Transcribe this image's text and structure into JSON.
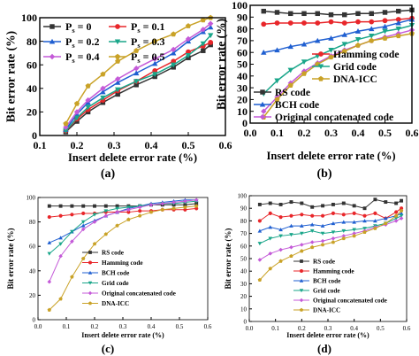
{
  "chart_data": [
    {
      "type": "line",
      "panel_label": "(a)",
      "xlabel": "Insert delete error rate (%)",
      "ylabel": "Bit error rate (%)",
      "xlim": [
        0.1,
        0.6
      ],
      "ylim": [
        0,
        100
      ],
      "xticks": [
        "0.1",
        "0.2",
        "0.3",
        "0.4",
        "0.5",
        "0.6"
      ],
      "yticks": [
        "0",
        "20",
        "40",
        "60",
        "80",
        "100"
      ],
      "grid": false,
      "legend_position": "top-left",
      "legend_columns": 2,
      "series": [
        {
          "name": "Ps = 0",
          "legend_main": "P",
          "legend_sub": "s",
          "legend_rest": " = 0",
          "color": "#333333",
          "marker": "square",
          "x": [
            0.17,
            0.2,
            0.23,
            0.27,
            0.31,
            0.36,
            0.41,
            0.46,
            0.5,
            0.54,
            0.56
          ],
          "y": [
            3,
            12,
            20,
            28,
            35,
            43,
            50,
            58,
            66,
            72,
            77
          ]
        },
        {
          "name": "Ps = 0.1",
          "legend_main": "P",
          "legend_sub": "s",
          "legend_rest": " = 0.1",
          "color": "#e8262a",
          "marker": "circle",
          "x": [
            0.17,
            0.2,
            0.23,
            0.27,
            0.31,
            0.36,
            0.41,
            0.46,
            0.5,
            0.54,
            0.56
          ],
          "y": [
            4,
            14,
            22,
            30,
            38,
            46,
            55,
            63,
            71,
            76,
            79
          ]
        },
        {
          "name": "Ps = 0.2",
          "legend_main": "P",
          "legend_sub": "s",
          "legend_rest": " = 0.2",
          "color": "#1f5fd1",
          "marker": "triangle",
          "x": [
            0.17,
            0.2,
            0.23,
            0.27,
            0.31,
            0.36,
            0.41,
            0.46,
            0.5,
            0.54,
            0.56
          ],
          "y": [
            5,
            18,
            28,
            37,
            45,
            53,
            61,
            70,
            80,
            88,
            92
          ]
        },
        {
          "name": "Ps = 0.3",
          "legend_main": "P",
          "legend_sub": "s",
          "legend_rest": " = 0.3",
          "color": "#1aa68a",
          "marker": "triangle-down",
          "x": [
            0.17,
            0.2,
            0.23,
            0.27,
            0.31,
            0.36,
            0.41,
            0.46,
            0.5,
            0.54,
            0.56
          ],
          "y": [
            4,
            15,
            24,
            32,
            39,
            46,
            52,
            60,
            68,
            78,
            85
          ]
        },
        {
          "name": "Ps = 0.4",
          "legend_main": "P",
          "legend_sub": "s",
          "legend_rest": " = 0.4",
          "color": "#c45ad8",
          "marker": "diamond",
          "x": [
            0.17,
            0.2,
            0.23,
            0.27,
            0.31,
            0.36,
            0.41,
            0.46,
            0.5,
            0.54,
            0.56
          ],
          "y": [
            7,
            20,
            30,
            40,
            48,
            57,
            65,
            73,
            82,
            90,
            95
          ]
        },
        {
          "name": "Ps = 0.5",
          "legend_main": "P",
          "legend_sub": "s",
          "legend_rest": " = 0.5",
          "color": "#c9a227",
          "marker": "pentagon",
          "x": [
            0.17,
            0.2,
            0.23,
            0.27,
            0.31,
            0.36,
            0.41,
            0.46,
            0.5,
            0.54,
            0.56
          ],
          "y": [
            10,
            27,
            42,
            52,
            63,
            72,
            80,
            86,
            93,
            98,
            100
          ]
        }
      ]
    },
    {
      "type": "line",
      "panel_label": "(b)",
      "xlabel": "Insert delete error rate (%)",
      "ylabel": "Bit error rate (%)",
      "xlim": [
        0.0,
        0.6
      ],
      "ylim": [
        0,
        100
      ],
      "xticks": [
        "0.0",
        "0.1",
        "0.2",
        "0.3",
        "0.4",
        "0.5",
        "0.6"
      ],
      "yticks": [
        "0",
        "10",
        "20",
        "30",
        "40",
        "50",
        "60",
        "70",
        "80",
        "90",
        "100"
      ],
      "grid": false,
      "legend_position": "lower-center",
      "series": [
        {
          "name": "RS code",
          "color": "#333333",
          "marker": "square",
          "x": [
            0.05,
            0.1,
            0.15,
            0.2,
            0.25,
            0.3,
            0.35,
            0.4,
            0.45,
            0.5,
            0.55,
            0.6
          ],
          "y": [
            95,
            94,
            93,
            93,
            93,
            92,
            92,
            93,
            93,
            94,
            95,
            96
          ]
        },
        {
          "name": "Hamming code",
          "color": "#e8262a",
          "marker": "circle",
          "x": [
            0.05,
            0.1,
            0.15,
            0.2,
            0.25,
            0.3,
            0.35,
            0.4,
            0.45,
            0.5,
            0.55,
            0.6
          ],
          "y": [
            84,
            85,
            85,
            85,
            85,
            86,
            85,
            86,
            86,
            87,
            88,
            89
          ]
        },
        {
          "name": "BCH code",
          "color": "#1f5fd1",
          "marker": "triangle",
          "x": [
            0.05,
            0.1,
            0.15,
            0.2,
            0.25,
            0.3,
            0.35,
            0.4,
            0.45,
            0.5,
            0.55,
            0.6
          ],
          "y": [
            60,
            62,
            65,
            67,
            70,
            72,
            75,
            78,
            80,
            82,
            85,
            88
          ]
        },
        {
          "name": "Grid code",
          "color": "#1aa68a",
          "marker": "triangle-down",
          "x": [
            0.05,
            0.1,
            0.15,
            0.2,
            0.25,
            0.3,
            0.35,
            0.4,
            0.45,
            0.5,
            0.55,
            0.6
          ],
          "y": [
            25,
            36,
            45,
            52,
            57,
            62,
            67,
            71,
            74,
            78,
            80,
            83
          ]
        },
        {
          "name": "Original concatenated code",
          "color": "#c45ad8",
          "marker": "diamond",
          "x": [
            0.05,
            0.1,
            0.15,
            0.2,
            0.25,
            0.3,
            0.35,
            0.4,
            0.45,
            0.5,
            0.55,
            0.6
          ],
          "y": [
            10,
            22,
            34,
            44,
            51,
            57,
            62,
            66,
            70,
            73,
            76,
            79
          ]
        },
        {
          "name": "DNA-ICC",
          "color": "#c9a227",
          "marker": "pentagon",
          "x": [
            0.05,
            0.1,
            0.15,
            0.2,
            0.25,
            0.3,
            0.35,
            0.4,
            0.45,
            0.5,
            0.55,
            0.6
          ],
          "y": [
            5,
            20,
            32,
            42,
            50,
            56,
            61,
            66,
            70,
            72,
            74,
            76
          ]
        }
      ]
    },
    {
      "type": "line",
      "panel_label": "(c)",
      "xlabel": "Insert delete error rate (%)",
      "ylabel": "Bit error rate (%)",
      "xlim": [
        0.0,
        0.6
      ],
      "ylim": [
        0,
        100
      ],
      "xticks": [
        "0.0",
        "0.1",
        "0.2",
        "0.3",
        "0.4",
        "0.5",
        "0.6"
      ],
      "yticks": [
        "0",
        "20",
        "40",
        "60",
        "80",
        "100"
      ],
      "grid": false,
      "legend_position": "lower-right",
      "series": [
        {
          "name": "RS code",
          "color": "#333333",
          "marker": "square",
          "x": [
            0.04,
            0.08,
            0.12,
            0.16,
            0.2,
            0.24,
            0.28,
            0.32,
            0.36,
            0.4,
            0.44,
            0.48,
            0.52,
            0.56
          ],
          "y": [
            93,
            93,
            93,
            93,
            93,
            93,
            93,
            93,
            93,
            94,
            94,
            94,
            94,
            95
          ]
        },
        {
          "name": "Hamming code",
          "color": "#e8262a",
          "marker": "circle",
          "x": [
            0.04,
            0.08,
            0.12,
            0.16,
            0.2,
            0.24,
            0.28,
            0.32,
            0.36,
            0.4,
            0.44,
            0.48,
            0.52,
            0.56
          ],
          "y": [
            84,
            85,
            86,
            87,
            87,
            88,
            88,
            88,
            89,
            89,
            90,
            90,
            90,
            91
          ]
        },
        {
          "name": "BCH code",
          "color": "#1f5fd1",
          "marker": "triangle",
          "x": [
            0.04,
            0.08,
            0.12,
            0.16,
            0.2,
            0.24,
            0.28,
            0.32,
            0.36,
            0.4,
            0.44,
            0.48,
            0.52,
            0.56
          ],
          "y": [
            63,
            67,
            72,
            77,
            81,
            85,
            88,
            91,
            93,
            95,
            96,
            97,
            98,
            98
          ]
        },
        {
          "name": "Grid code",
          "color": "#1aa68a",
          "marker": "triangle-down",
          "x": [
            0.04,
            0.08,
            0.12,
            0.16,
            0.2,
            0.24,
            0.28,
            0.32,
            0.36,
            0.4,
            0.44,
            0.48,
            0.52,
            0.56
          ],
          "y": [
            54,
            62,
            72,
            80,
            86,
            89,
            91,
            92,
            93,
            94,
            95,
            95,
            96,
            97
          ]
        },
        {
          "name": "Original concatenated code",
          "color": "#c45ad8",
          "marker": "diamond",
          "x": [
            0.04,
            0.08,
            0.12,
            0.16,
            0.2,
            0.24,
            0.28,
            0.32,
            0.36,
            0.4,
            0.44,
            0.48,
            0.52,
            0.56
          ],
          "y": [
            31,
            52,
            64,
            74,
            80,
            85,
            88,
            90,
            92,
            94,
            95,
            96,
            97,
            98
          ]
        },
        {
          "name": "DNA-ICC",
          "color": "#c9a227",
          "marker": "pentagon",
          "x": [
            0.04,
            0.08,
            0.12,
            0.16,
            0.2,
            0.24,
            0.28,
            0.32,
            0.36,
            0.4,
            0.44,
            0.48,
            0.52,
            0.56
          ],
          "y": [
            8,
            17,
            35,
            50,
            62,
            70,
            77,
            82,
            85,
            88,
            90,
            91,
            92,
            93
          ]
        }
      ]
    },
    {
      "type": "line",
      "panel_label": "(d)",
      "xlabel": "Insert delete error rate (%)",
      "ylabel": "Bit error rate (%)",
      "xlim": [
        0.0,
        0.6
      ],
      "ylim": [
        0,
        100
      ],
      "xticks": [
        "0.0",
        "0.1",
        "0.2",
        "0.3",
        "0.4",
        "0.5",
        "0.6"
      ],
      "yticks": [
        "0",
        "10",
        "20",
        "30",
        "40",
        "50",
        "60",
        "70",
        "80",
        "90",
        "100"
      ],
      "grid": false,
      "legend_position": "lower-right",
      "series": [
        {
          "name": "RS code",
          "color": "#333333",
          "marker": "square",
          "x": [
            0.04,
            0.08,
            0.12,
            0.16,
            0.2,
            0.24,
            0.28,
            0.32,
            0.36,
            0.4,
            0.44,
            0.48,
            0.52,
            0.56,
            0.58
          ],
          "y": [
            93,
            94,
            93,
            95,
            94,
            91,
            92,
            93,
            94,
            92,
            90,
            97,
            95,
            94,
            96
          ]
        },
        {
          "name": "Hamming code",
          "color": "#e8262a",
          "marker": "circle",
          "x": [
            0.04,
            0.08,
            0.12,
            0.16,
            0.2,
            0.24,
            0.28,
            0.32,
            0.36,
            0.4,
            0.44,
            0.48,
            0.52,
            0.56,
            0.58
          ],
          "y": [
            80,
            86,
            83,
            84,
            85,
            84,
            84,
            86,
            85,
            86,
            84,
            86,
            82,
            87,
            90
          ]
        },
        {
          "name": "BCH code",
          "color": "#1f5fd1",
          "marker": "triangle",
          "x": [
            0.04,
            0.08,
            0.12,
            0.16,
            0.2,
            0.24,
            0.28,
            0.32,
            0.36,
            0.4,
            0.44,
            0.48,
            0.52,
            0.56,
            0.58
          ],
          "y": [
            72,
            75,
            73,
            76,
            76,
            77,
            76,
            78,
            79,
            79,
            80,
            80,
            82,
            84,
            86
          ]
        },
        {
          "name": "Grid code",
          "color": "#1aa68a",
          "marker": "triangle-down",
          "x": [
            0.04,
            0.08,
            0.12,
            0.16,
            0.2,
            0.24,
            0.28,
            0.32,
            0.36,
            0.4,
            0.44,
            0.48,
            0.52,
            0.56,
            0.58
          ],
          "y": [
            62,
            66,
            68,
            69,
            70,
            72,
            70,
            71,
            72,
            73,
            74,
            76,
            78,
            82,
            84
          ]
        },
        {
          "name": "Original concatenated code",
          "color": "#c45ad8",
          "marker": "diamond",
          "x": [
            0.04,
            0.08,
            0.12,
            0.16,
            0.2,
            0.24,
            0.28,
            0.32,
            0.36,
            0.4,
            0.44,
            0.48,
            0.52,
            0.56,
            0.58
          ],
          "y": [
            49,
            54,
            57,
            59,
            61,
            63,
            64,
            66,
            68,
            70,
            72,
            75,
            77,
            80,
            82
          ]
        },
        {
          "name": "DNA-ICC",
          "color": "#c9a227",
          "marker": "pentagon",
          "x": [
            0.04,
            0.08,
            0.12,
            0.16,
            0.2,
            0.24,
            0.28,
            0.32,
            0.36,
            0.4,
            0.44,
            0.48,
            0.52,
            0.56,
            0.58
          ],
          "y": [
            33,
            42,
            48,
            52,
            56,
            59,
            61,
            63,
            66,
            68,
            71,
            74,
            78,
            84,
            88
          ]
        }
      ]
    }
  ]
}
